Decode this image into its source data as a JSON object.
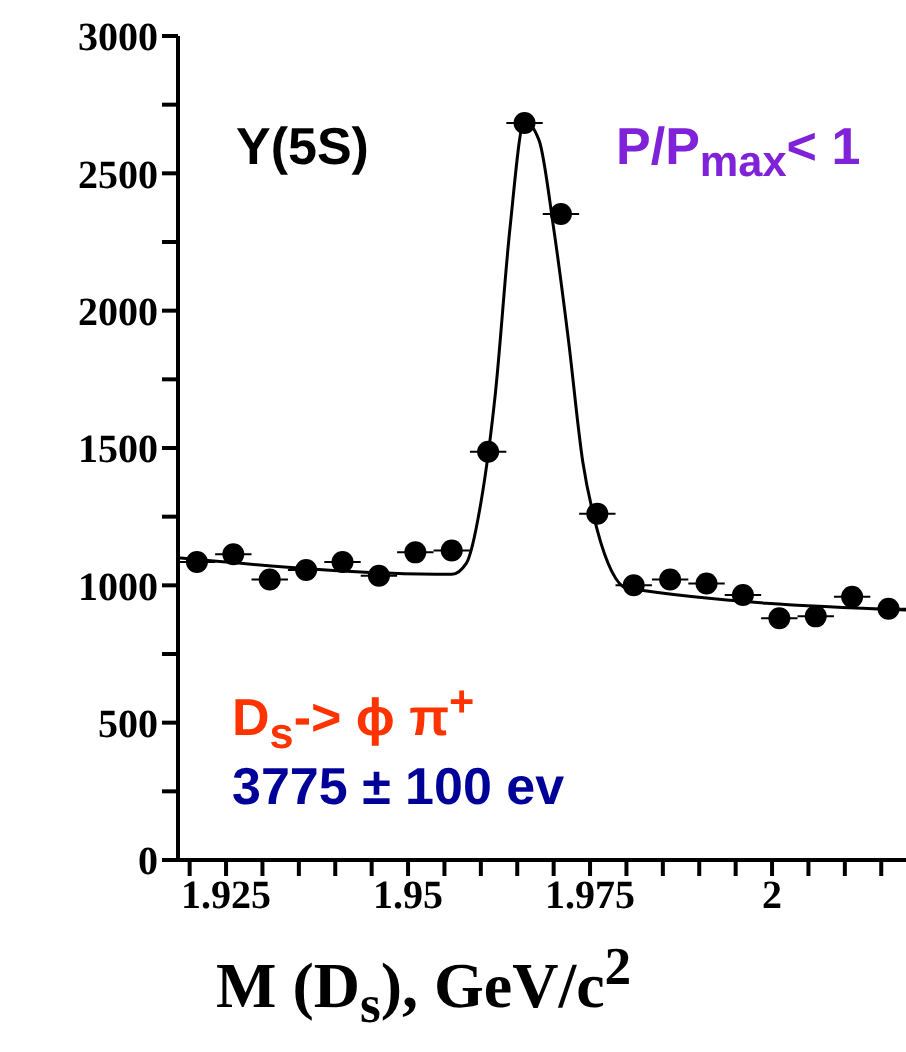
{
  "chart_data": {
    "type": "scatter",
    "xlabel": "M (D$_{s}$), GeV/c$^{2}$",
    "annotations": [
      "Υ(5S)",
      "P/P$_{max}$< 1",
      "D$_{s}$-> ϕ π$^{+}$",
      "3775 ± 100 ev"
    ],
    "xlim": [
      1.9184,
      2.0184
    ],
    "xticks": [
      {
        "value": 1.92,
        "label": null
      },
      1.925,
      {
        "value": 1.93,
        "label": null
      },
      {
        "value": 1.935,
        "label": null
      },
      {
        "value": 1.94,
        "label": null
      },
      {
        "value": 1.945,
        "label": null
      },
      1.95,
      {
        "value": 1.955,
        "label": null
      },
      {
        "value": 1.96,
        "label": null
      },
      {
        "value": 1.965,
        "label": null
      },
      {
        "value": 1.97,
        "label": null
      },
      1.975,
      {
        "value": 1.98,
        "label": null
      },
      {
        "value": 1.985,
        "label": null
      },
      {
        "value": 1.99,
        "label": null
      },
      {
        "value": 1.995,
        "label": null
      },
      2,
      {
        "value": 2.005,
        "label": null
      },
      {
        "value": 2.01,
        "label": null
      },
      {
        "value": 2.015,
        "label": null
      }
    ],
    "ylim": [
      0,
      3000
    ],
    "yticks": [
      0,
      {
        "value": 250,
        "label": null
      },
      500,
      {
        "value": 750,
        "label": null
      },
      1000,
      {
        "value": 1250,
        "label": null
      },
      1500,
      {
        "value": 1750,
        "label": null
      },
      2000,
      {
        "value": 2250,
        "label": null
      },
      2500,
      {
        "value": 2750,
        "label": null
      },
      3000
    ],
    "grid": false,
    "legend": false,
    "series": [
      {
        "color": "#000000",
        "marker": "circle",
        "x": [
          1.921,
          1.926,
          1.931,
          1.936,
          1.941,
          1.946,
          1.951,
          1.956,
          1.961,
          1.966,
          1.971,
          1.976,
          1.981,
          1.986,
          1.991,
          1.996,
          2.001,
          2.006,
          2.011,
          2.016
        ],
        "values": [
          1085,
          1113,
          1021,
          1056,
          1085,
          1035,
          1120,
          1127,
          1486,
          2683,
          2352,
          1261,
          1000,
          1021,
          1007,
          965,
          880,
          887,
          958,
          915
        ],
        "xerrors": [
          0.0025,
          0.0025,
          0.0025,
          0.0025,
          0.0025,
          0.0025,
          0.0025,
          0.0025,
          0.0025,
          0.0025,
          0.0025,
          0.0025,
          0.0025,
          0.0025,
          0.0025,
          0.0025,
          0.0025,
          0.0025,
          0.0025,
          0.0025
        ]
      },
      {
        "type": "line",
        "color": "#000000",
        "marker": "none",
        "line_style": "solid",
        "x": [
          1.9184,
          1.956,
          1.958,
          1.96,
          1.962,
          1.964,
          1.966,
          1.968,
          1.97,
          1.972,
          1.974,
          1.976,
          1.978,
          1.98,
          2.0184
        ],
        "values": [
          1100,
          1040,
          1080,
          1300,
          1700,
          2300,
          2690,
          2620,
          2300,
          1900,
          1450,
          1200,
          1050,
          990,
          910
        ]
      }
    ]
  }
}
